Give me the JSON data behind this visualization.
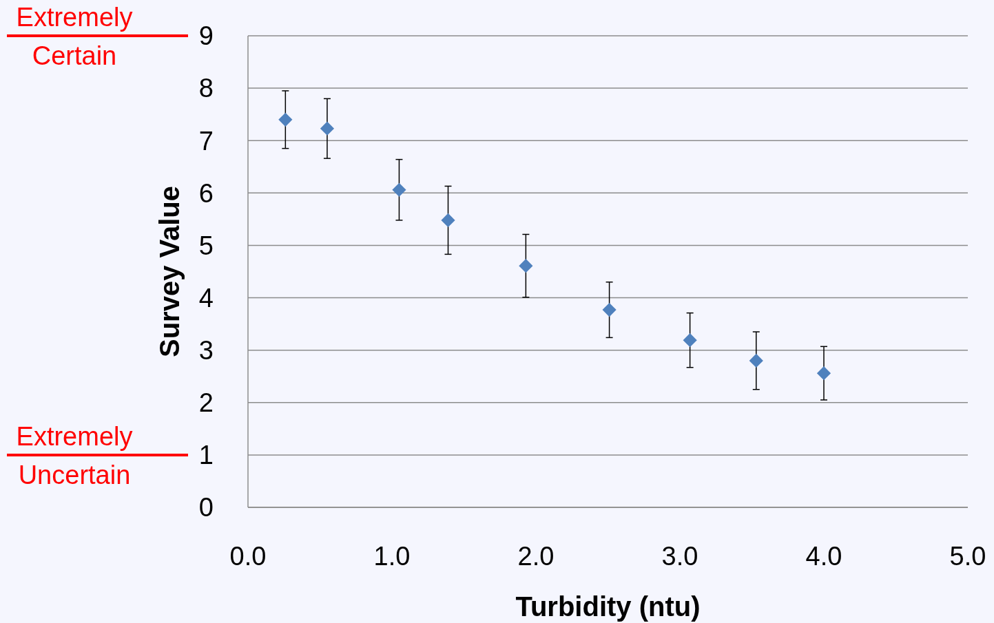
{
  "chart_data": {
    "type": "scatter",
    "xlabel": "Turbidity (ntu)",
    "ylabel": "Survey Value",
    "x": [
      0.26,
      0.55,
      1.05,
      1.39,
      1.93,
      2.51,
      3.07,
      3.53,
      4.0
    ],
    "values": [
      7.4,
      7.23,
      6.06,
      5.48,
      4.61,
      3.77,
      3.19,
      2.8,
      2.56
    ],
    "errors": [
      0.55,
      0.57,
      0.58,
      0.65,
      0.6,
      0.53,
      0.52,
      0.55,
      0.51
    ],
    "color": "#4f81bd",
    "marker": "diamond",
    "xlim": [
      0,
      5
    ],
    "xticks": [
      {
        "value": 0,
        "label": "0.0"
      },
      {
        "value": 1,
        "label": "1.0"
      },
      {
        "value": 2,
        "label": "2.0"
      },
      {
        "value": 3,
        "label": "3.0"
      },
      {
        "value": 4,
        "label": "4.0"
      },
      {
        "value": 5,
        "label": "5.0"
      }
    ],
    "ylim": [
      0,
      9
    ],
    "yticks": [
      0,
      1,
      2,
      3,
      4,
      5,
      6,
      7,
      8,
      9
    ],
    "grid": "y",
    "ref_lines": [
      {
        "axis": "y",
        "value": 9,
        "label": "Extremely Certain",
        "color": "#ff0000"
      },
      {
        "axis": "y",
        "value": 1,
        "label": "Extremely Uncertain",
        "color": "#ff0000"
      }
    ]
  }
}
